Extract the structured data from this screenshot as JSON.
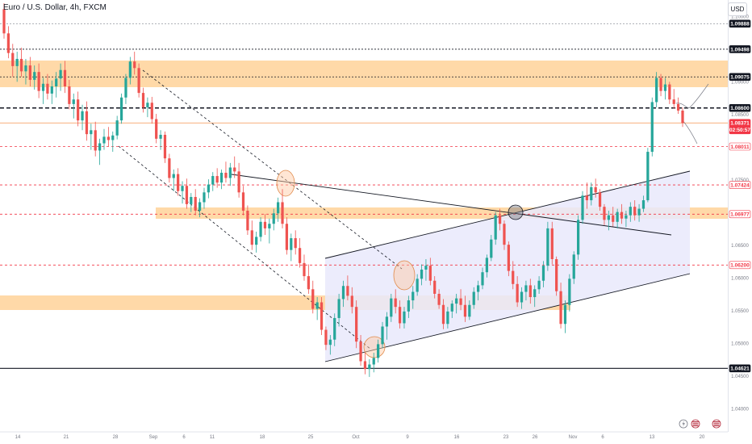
{
  "header": {
    "symbol_title": "Euro / U.S. Dollar, 4h, FXCM",
    "currency": "USD"
  },
  "colors": {
    "bull": "#26a69a",
    "bear": "#ef5350",
    "zone": "#ffd9a8",
    "channel_fill": "#e9e9fb",
    "level_red": "#f23645",
    "level_black": "#131722"
  },
  "chart_data": {
    "type": "candlestick",
    "symbol": "Euro / U.S. Dollar",
    "timeframe": "4h",
    "source": "FXCM",
    "currency": "USD",
    "ylim": [
      1.0365,
      1.1025
    ],
    "x_tick_labels": [
      "14",
      "21",
      "28",
      "Sep",
      "6",
      "11",
      "18",
      "25",
      "Oct",
      "9",
      "16",
      "23",
      "26",
      "Nov",
      "6",
      "13",
      "20"
    ],
    "y_tick_labels": [
      "1.10000",
      "1.09500",
      "1.09000",
      "1.08500",
      "1.08000",
      "1.07500",
      "1.07000",
      "1.06500",
      "1.06000",
      "1.05500",
      "1.05000",
      "1.04500",
      "1.04000",
      "1.03500"
    ],
    "price_levels": [
      {
        "value": 1.09888,
        "label": "1.09888",
        "style": "black-dotted"
      },
      {
        "value": 1.09498,
        "label": "1.09498",
        "style": "black-dashed"
      },
      {
        "value": 1.09075,
        "label": "1.09075",
        "style": "black-dashed"
      },
      {
        "value": 1.086,
        "label": "1.08600",
        "style": "black-bold-dashed"
      },
      {
        "value": 1.08371,
        "label": "1.08371",
        "sublabel": "02:50:57",
        "style": "current"
      },
      {
        "value": 1.08011,
        "label": "1.08011",
        "style": "red-dashed"
      },
      {
        "value": 1.07424,
        "label": "1.07424",
        "style": "red-dashed"
      },
      {
        "value": 1.06977,
        "label": "1.06977",
        "style": "red-dashed"
      },
      {
        "value": 1.062,
        "label": "1.06200",
        "style": "red-dashed"
      },
      {
        "value": 1.04621,
        "label": "1.04621",
        "style": "black-solid"
      }
    ],
    "zones": [
      {
        "from": 1.0905,
        "to": 1.0952
      },
      {
        "from": 1.0682,
        "to": 1.0703
      },
      {
        "from": 1.0517,
        "to": 1.0543
      }
    ],
    "candles": [
      [
        1.1011,
        1.102,
        1.0966,
        1.0974
      ],
      [
        1.0974,
        1.0985,
        1.0936,
        1.0944
      ],
      [
        1.0944,
        1.0958,
        1.0908,
        1.0924
      ],
      [
        1.0924,
        1.0946,
        1.09,
        1.0935
      ],
      [
        1.0935,
        1.0952,
        1.0908,
        1.0916
      ],
      [
        1.0916,
        1.0935,
        1.0896,
        1.0925
      ],
      [
        1.0925,
        1.0938,
        1.0893,
        1.0903
      ],
      [
        1.0903,
        1.0925,
        1.0888,
        1.0915
      ],
      [
        1.0915,
        1.0928,
        1.0875,
        1.0886
      ],
      [
        1.0886,
        1.0906,
        1.0866,
        1.0897
      ],
      [
        1.0897,
        1.0912,
        1.0873,
        1.0882
      ],
      [
        1.0882,
        1.0902,
        1.0866,
        1.0893
      ],
      [
        1.0893,
        1.0915,
        1.0876,
        1.0905
      ],
      [
        1.0905,
        1.0928,
        1.0886,
        1.0918
      ],
      [
        1.0918,
        1.0932,
        1.0883,
        1.0893
      ],
      [
        1.0893,
        1.0903,
        1.0858,
        1.0866
      ],
      [
        1.0866,
        1.0882,
        1.0844,
        1.0873
      ],
      [
        1.0873,
        1.0885,
        1.0832,
        1.0841
      ],
      [
        1.0841,
        1.0865,
        1.0826,
        1.0855
      ],
      [
        1.0855,
        1.087,
        1.081,
        1.082
      ],
      [
        1.082,
        1.0836,
        1.0796,
        1.0826
      ],
      [
        1.0826,
        1.0839,
        1.0786,
        1.0795
      ],
      [
        1.0795,
        1.0813,
        1.0773,
        1.0806
      ],
      [
        1.0806,
        1.0828,
        1.0796,
        1.0816
      ],
      [
        1.0816,
        1.0831,
        1.0801,
        1.0811
      ],
      [
        1.0811,
        1.0824,
        1.0793,
        1.0818
      ],
      [
        1.0818,
        1.0848,
        1.0812,
        1.0841
      ],
      [
        1.0841,
        1.0882,
        1.0836,
        1.0876
      ],
      [
        1.0876,
        1.0912,
        1.0866,
        1.0906
      ],
      [
        1.0906,
        1.0938,
        1.0896,
        1.0931
      ],
      [
        1.0931,
        1.0946,
        1.0911,
        1.0921
      ],
      [
        1.0921,
        1.0928,
        1.0876,
        1.0883
      ],
      [
        1.0883,
        1.0891,
        1.0853,
        1.0861
      ],
      [
        1.0861,
        1.0876,
        1.0846,
        1.0868
      ],
      [
        1.0868,
        1.0877,
        1.0836,
        1.0843
      ],
      [
        1.0843,
        1.0851,
        1.0806,
        1.0813
      ],
      [
        1.0813,
        1.0826,
        1.0796,
        1.0819
      ],
      [
        1.0819,
        1.0824,
        1.0776,
        1.0783
      ],
      [
        1.0783,
        1.079,
        1.0746,
        1.0753
      ],
      [
        1.0753,
        1.0766,
        1.0733,
        1.0759
      ],
      [
        1.0759,
        1.0768,
        1.0726,
        1.0733
      ],
      [
        1.0733,
        1.0748,
        1.0714,
        1.0741
      ],
      [
        1.0741,
        1.0752,
        1.0706,
        1.0713
      ],
      [
        1.0713,
        1.073,
        1.0701,
        1.0724
      ],
      [
        1.0724,
        1.0736,
        1.0696,
        1.0703
      ],
      [
        1.0703,
        1.0722,
        1.0693,
        1.0716
      ],
      [
        1.0716,
        1.0738,
        1.0706,
        1.0731
      ],
      [
        1.0731,
        1.0751,
        1.0722,
        1.0743
      ],
      [
        1.0743,
        1.0762,
        1.0733,
        1.0756
      ],
      [
        1.0756,
        1.0768,
        1.0738,
        1.0746
      ],
      [
        1.0746,
        1.0766,
        1.0736,
        1.0761
      ],
      [
        1.0761,
        1.0778,
        1.0746,
        1.0753
      ],
      [
        1.0753,
        1.0776,
        1.0741,
        1.0769
      ],
      [
        1.0769,
        1.0786,
        1.0753,
        1.0763
      ],
      [
        1.0763,
        1.0776,
        1.0723,
        1.0731
      ],
      [
        1.0731,
        1.0741,
        1.0696,
        1.0703
      ],
      [
        1.0703,
        1.0711,
        1.0666,
        1.0673
      ],
      [
        1.0673,
        1.0688,
        1.0643,
        1.0651
      ],
      [
        1.0651,
        1.0671,
        1.0639,
        1.0663
      ],
      [
        1.0663,
        1.0693,
        1.0656,
        1.0686
      ],
      [
        1.0686,
        1.0698,
        1.0666,
        1.0676
      ],
      [
        1.0676,
        1.0691,
        1.0653,
        1.0683
      ],
      [
        1.0683,
        1.0706,
        1.0673,
        1.0699
      ],
      [
        1.0699,
        1.0723,
        1.0686,
        1.0716
      ],
      [
        1.0716,
        1.0736,
        1.0676,
        1.0683
      ],
      [
        1.0683,
        1.0693,
        1.0636,
        1.0643
      ],
      [
        1.0643,
        1.0668,
        1.0626,
        1.0661
      ],
      [
        1.0661,
        1.0673,
        1.0636,
        1.0646
      ],
      [
        1.0646,
        1.0661,
        1.0616,
        1.0623
      ],
      [
        1.0623,
        1.0636,
        1.0596,
        1.0603
      ],
      [
        1.0603,
        1.0621,
        1.0576,
        1.0583
      ],
      [
        1.0583,
        1.0596,
        1.0546,
        1.0553
      ],
      [
        1.0553,
        1.0571,
        1.0536,
        1.0563
      ],
      [
        1.0563,
        1.0571,
        1.0513,
        1.0521
      ],
      [
        1.0521,
        1.0526,
        1.049,
        1.0498
      ],
      [
        1.0498,
        1.0513,
        1.0483,
        1.0506
      ],
      [
        1.0506,
        1.0546,
        1.0496,
        1.0539
      ],
      [
        1.0539,
        1.0576,
        1.0526,
        1.0568
      ],
      [
        1.0568,
        1.0596,
        1.0556,
        1.0588
      ],
      [
        1.0588,
        1.0604,
        1.0566,
        1.0573
      ],
      [
        1.0573,
        1.0586,
        1.0546,
        1.0556
      ],
      [
        1.0556,
        1.0566,
        1.0493,
        1.0503
      ],
      [
        1.0503,
        1.0513,
        1.0466,
        1.0473
      ],
      [
        1.0473,
        1.0486,
        1.0453,
        1.0461
      ],
      [
        1.0461,
        1.0476,
        1.0449,
        1.0468
      ],
      [
        1.0468,
        1.0486,
        1.0456,
        1.0478
      ],
      [
        1.0478,
        1.0506,
        1.0471,
        1.0499
      ],
      [
        1.0499,
        1.0533,
        1.0493,
        1.0526
      ],
      [
        1.0526,
        1.0548,
        1.0506,
        1.0541
      ],
      [
        1.0541,
        1.0576,
        1.0533,
        1.0569
      ],
      [
        1.0569,
        1.0583,
        1.0546,
        1.0556
      ],
      [
        1.0556,
        1.0566,
        1.0523,
        1.0531
      ],
      [
        1.0531,
        1.0556,
        1.0523,
        1.0549
      ],
      [
        1.0549,
        1.0573,
        1.0539,
        1.0566
      ],
      [
        1.0566,
        1.0588,
        1.0553,
        1.0579
      ],
      [
        1.0579,
        1.0606,
        1.0573,
        1.0599
      ],
      [
        1.0599,
        1.0621,
        1.0589,
        1.0613
      ],
      [
        1.0613,
        1.0629,
        1.0596,
        1.0619
      ],
      [
        1.0619,
        1.0631,
        1.0589,
        1.0596
      ],
      [
        1.0596,
        1.0603,
        1.0569,
        1.0576
      ],
      [
        1.0576,
        1.0583,
        1.0553,
        1.0559
      ],
      [
        1.0559,
        1.0568,
        1.0522,
        1.053
      ],
      [
        1.053,
        1.0556,
        1.0523,
        1.0549
      ],
      [
        1.0549,
        1.0566,
        1.0539,
        1.0561
      ],
      [
        1.0561,
        1.0576,
        1.0546,
        1.0569
      ],
      [
        1.0569,
        1.0583,
        1.0551,
        1.0559
      ],
      [
        1.0559,
        1.0573,
        1.0533,
        1.0541
      ],
      [
        1.0541,
        1.0566,
        1.0536,
        1.0559
      ],
      [
        1.0559,
        1.0586,
        1.0553,
        1.0579
      ],
      [
        1.0579,
        1.0596,
        1.0566,
        1.0589
      ],
      [
        1.0589,
        1.0616,
        1.0583,
        1.0609
      ],
      [
        1.0609,
        1.0636,
        1.0601,
        1.0631
      ],
      [
        1.0631,
        1.0666,
        1.0626,
        1.0659
      ],
      [
        1.0659,
        1.0701,
        1.0651,
        1.0696
      ],
      [
        1.0696,
        1.0706,
        1.0673,
        1.0683
      ],
      [
        1.0683,
        1.0688,
        1.0643,
        1.0651
      ],
      [
        1.0651,
        1.0656,
        1.0603,
        1.0611
      ],
      [
        1.0611,
        1.0626,
        1.0583,
        1.0591
      ],
      [
        1.0591,
        1.0603,
        1.0556,
        1.0563
      ],
      [
        1.0563,
        1.0586,
        1.0553,
        1.0579
      ],
      [
        1.0579,
        1.0596,
        1.0566,
        1.0589
      ],
      [
        1.0589,
        1.0599,
        1.0561,
        1.0571
      ],
      [
        1.0571,
        1.0589,
        1.0556,
        1.0583
      ],
      [
        1.0583,
        1.0603,
        1.0576,
        1.0596
      ],
      [
        1.0596,
        1.0626,
        1.0586,
        1.0619
      ],
      [
        1.0619,
        1.0686,
        1.0611,
        1.0676
      ],
      [
        1.0676,
        1.0686,
        1.0621,
        1.0629
      ],
      [
        1.0629,
        1.0633,
        1.0573,
        1.058
      ],
      [
        1.058,
        1.0593,
        1.0523,
        1.053
      ],
      [
        1.053,
        1.0566,
        1.0516,
        1.0559
      ],
      [
        1.0559,
        1.0606,
        1.0549,
        1.0599
      ],
      [
        1.0599,
        1.0641,
        1.0591,
        1.0636
      ],
      [
        1.0636,
        1.0696,
        1.0628,
        1.0689
      ],
      [
        1.0689,
        1.0733,
        1.0683,
        1.0726
      ],
      [
        1.0726,
        1.0746,
        1.0706,
        1.0719
      ],
      [
        1.0719,
        1.0746,
        1.0711,
        1.0739
      ],
      [
        1.0739,
        1.0752,
        1.0723,
        1.0731
      ],
      [
        1.0731,
        1.0736,
        1.0703,
        1.0709
      ],
      [
        1.0709,
        1.0713,
        1.0681,
        1.0689
      ],
      [
        1.0689,
        1.0703,
        1.0673,
        1.0696
      ],
      [
        1.0696,
        1.0709,
        1.0679,
        1.0686
      ],
      [
        1.0686,
        1.0706,
        1.0676,
        1.0701
      ],
      [
        1.0701,
        1.0713,
        1.0683,
        1.0691
      ],
      [
        1.0691,
        1.0703,
        1.0678,
        1.0696
      ],
      [
        1.0696,
        1.0716,
        1.0686,
        1.0709
      ],
      [
        1.0709,
        1.0719,
        1.0688,
        1.0696
      ],
      [
        1.0696,
        1.0713,
        1.0686,
        1.0706
      ],
      [
        1.0706,
        1.0726,
        1.0701,
        1.0719
      ],
      [
        1.0719,
        1.0799,
        1.0716,
        1.0793
      ],
      [
        1.0793,
        1.0876,
        1.0786,
        1.0869
      ],
      [
        1.0869,
        1.0915,
        1.0861,
        1.0906
      ],
      [
        1.0906,
        1.0912,
        1.0878,
        1.0886
      ],
      [
        1.0886,
        1.0906,
        1.0873,
        1.0896
      ],
      [
        1.0896,
        1.09,
        1.0866,
        1.0873
      ],
      [
        1.0873,
        1.0889,
        1.0859,
        1.0866
      ],
      [
        1.0866,
        1.0876,
        1.0851,
        1.0856
      ],
      [
        1.0856,
        1.0861,
        1.0831,
        1.0837
      ]
    ]
  },
  "footer": {
    "icons": [
      "lightning-icon",
      "us-flag-icon",
      "us-flag-icon"
    ]
  }
}
